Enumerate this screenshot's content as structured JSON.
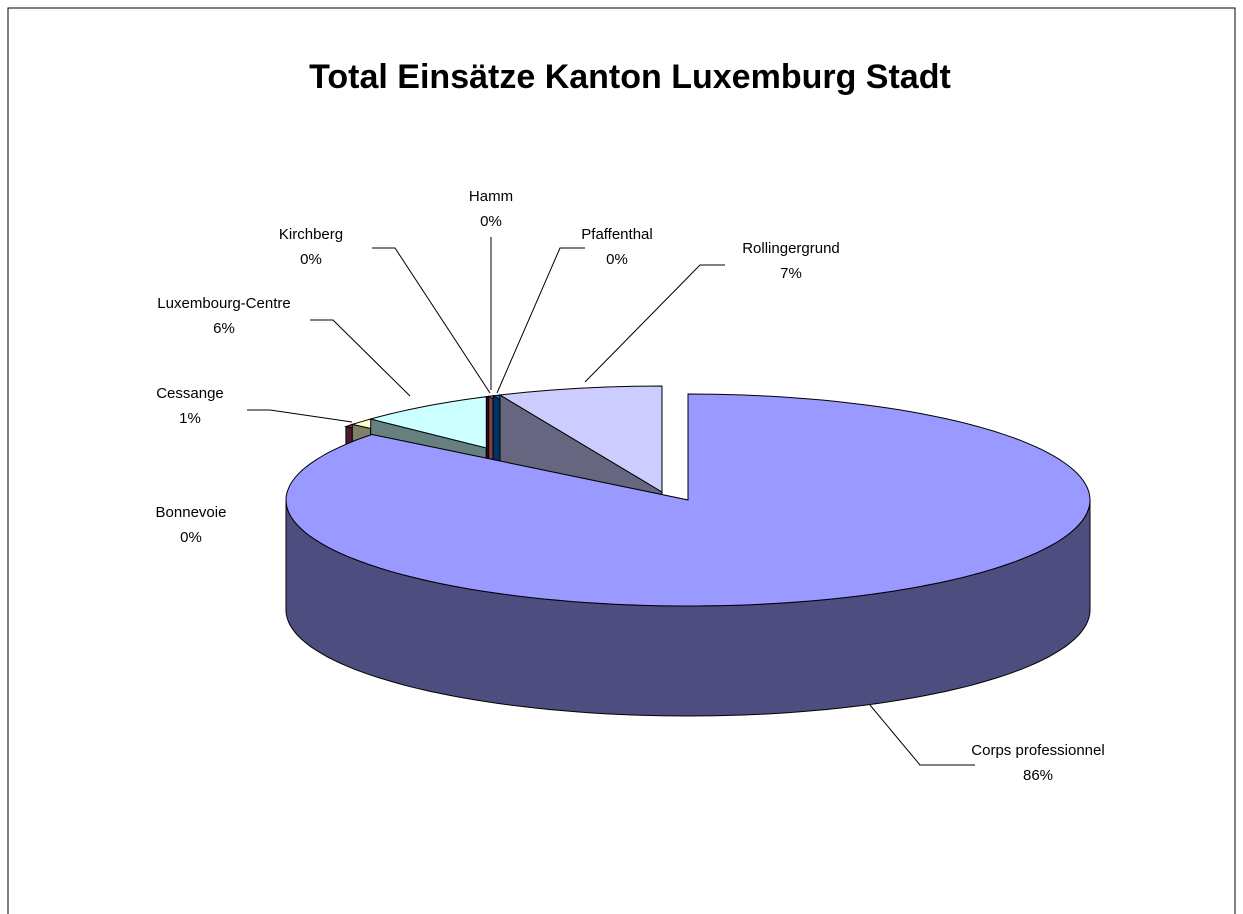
{
  "chart_data": {
    "type": "pie3d",
    "title": "Total Einsätze Kanton Luxemburg Stadt",
    "categories": [
      "Corps professionnel",
      "Bonnevoie",
      "Cessange",
      "Luxembourg-Centre",
      "Kirchberg",
      "Hamm",
      "Pfaffenthal",
      "Rollingergrund"
    ],
    "values": [
      85.6,
      0.4,
      1.1,
      5.7,
      0.1,
      0.2,
      0.3,
      6.6
    ],
    "value_labels": [
      "86%",
      "0%",
      "1%",
      "6%",
      "0%",
      "0%",
      "0%",
      "7%"
    ],
    "colors": [
      "#9999ff",
      "#993366",
      "#ffffcc",
      "#ccffff",
      "#660066",
      "#ff8080",
      "#0066cc",
      "#ccccff"
    ]
  }
}
